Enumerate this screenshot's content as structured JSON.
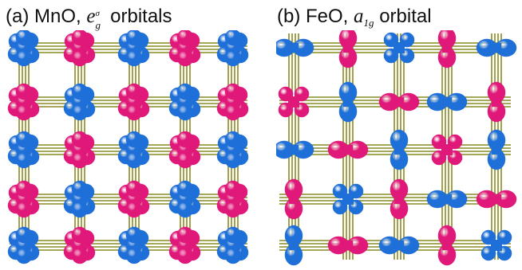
{
  "panels": [
    {
      "label": "(a) MnO,",
      "orbital_symbol": "e",
      "orbital_superscript": "σ",
      "orbital_subscript": "g",
      "orbital_word": "orbitals",
      "orbital_pattern": "eg"
    },
    {
      "label": "(b) FeO,",
      "orbital_symbol": "a",
      "orbital_subscript": "1g",
      "orbital_word": "orbital",
      "orbital_pattern": "a1g"
    }
  ],
  "colors": {
    "blue": "#1f6fd8",
    "magenta": "#e0187a",
    "bond": "#8a8a22",
    "bond_highlight": "#c9c94a"
  }
}
